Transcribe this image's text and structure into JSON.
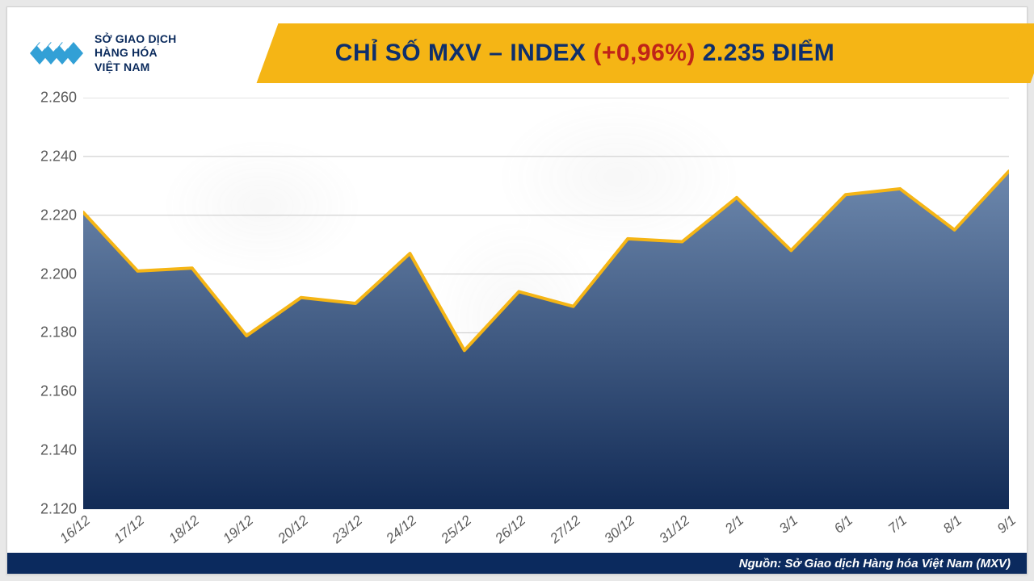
{
  "logo": {
    "line1": "SỞ GIAO DỊCH",
    "line2": "HÀNG HÓA",
    "line3": "VIỆT NAM",
    "mark_color": "#32a0d6",
    "text_color": "#0a2a5c"
  },
  "title": {
    "main": "CHỈ SỐ MXV – INDEX",
    "change": "(+0,96%)",
    "points": "2.235 ĐIỂM",
    "bar_color": "#f5b515",
    "main_color": "#0e2f6c",
    "change_color": "#c02418",
    "fontsize": 30
  },
  "chart": {
    "type": "area",
    "categories": [
      "16/12",
      "17/12",
      "18/12",
      "19/12",
      "20/12",
      "23/12",
      "24/12",
      "25/12",
      "26/12",
      "27/12",
      "30/12",
      "31/12",
      "2/1",
      "3/1",
      "6/1",
      "7/1",
      "8/1",
      "9/1"
    ],
    "values": [
      2221,
      2201,
      2202,
      2179,
      2192,
      2190,
      2207,
      2174,
      2194,
      2189,
      2212,
      2211,
      2226,
      2208,
      2227,
      2229,
      2215,
      2235
    ],
    "ylim": [
      2120,
      2260
    ],
    "ytick_step": 20,
    "ytick_labels": [
      "2.120",
      "2.140",
      "2.160",
      "2.180",
      "2.200",
      "2.220",
      "2.240",
      "2.260"
    ],
    "line_color": "#f5b515",
    "line_width": 4,
    "fill_top_color": "#6d88ad",
    "fill_bottom_color": "#122b56",
    "grid_color": "#c8c8c8",
    "axis_font_color": "#5a5a5a",
    "axis_fontsize": 18,
    "background_color": "#ffffff"
  },
  "footer": {
    "text": "Nguồn: Sở Giao dịch Hàng hóa Việt Nam (MXV)",
    "bg_color": "#0b2a5e",
    "text_color": "#ffffff"
  }
}
